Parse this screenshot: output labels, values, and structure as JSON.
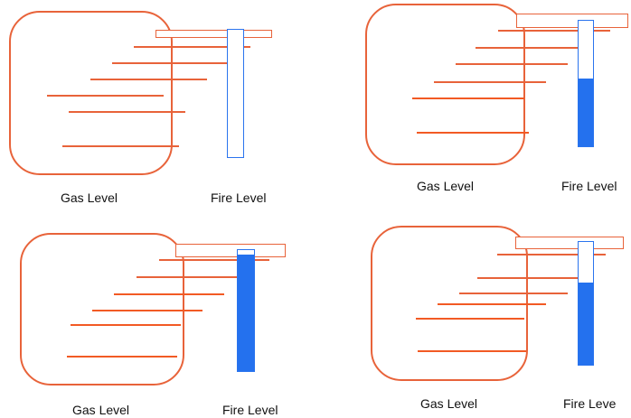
{
  "colors": {
    "gas_border": "#e8633a",
    "gas_fill": "#f25a24",
    "fire_border": "#2a74ee",
    "fire_fill": "#2471ee"
  },
  "panels": [
    {
      "gas_label": "Gas Level",
      "fire_label": "Fire Level",
      "gas_bar_fill": [
        0,
        0,
        0,
        0,
        0
      ],
      "fire_level_percent": 0
    },
    {
      "gas_label": "Gas Level",
      "fire_label": "Fire Level",
      "gas_bar_fill": [
        1,
        1,
        0,
        0,
        0
      ],
      "fire_level_percent": 54
    },
    {
      "gas_label": "Gas Level",
      "fire_label": "Fire Level",
      "gas_bar_fill": [
        1,
        1,
        1,
        1,
        0.87
      ],
      "fire_level_percent": 96
    },
    {
      "gas_label": "Gas Level",
      "fire_label": "Fire Leve",
      "gas_bar_fill": [
        1,
        1,
        1,
        0,
        0
      ],
      "fire_level_percent": 67
    }
  ]
}
